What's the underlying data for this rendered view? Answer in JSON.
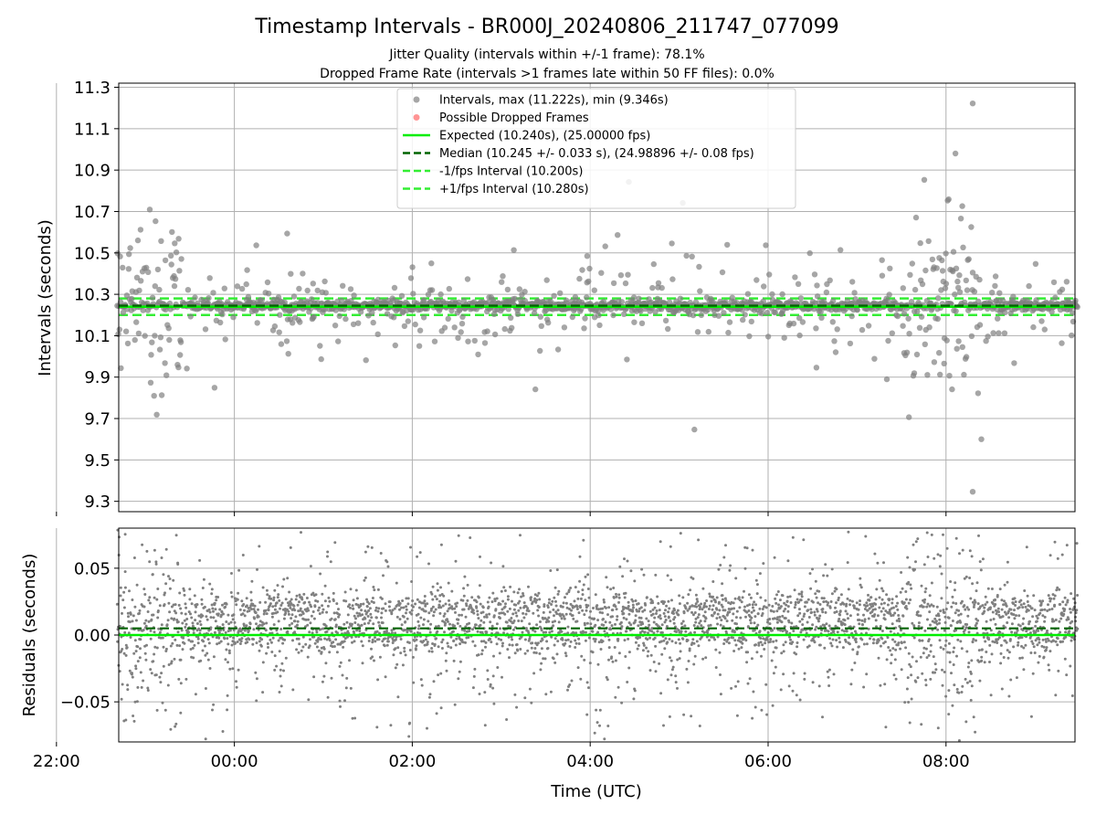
{
  "title": "Timestamp Intervals - BR000J_20240806_211747_077099",
  "subtitle_1": "Jitter Quality (intervals within +/-1 frame): 78.1%",
  "subtitle_2": "Dropped Frame Rate (intervals >1 frames late within 50 FF files): 0.0%",
  "colors": {
    "points": "#808080",
    "dropped": "#ff6666",
    "expected": "#00ee00",
    "median": "#006400",
    "bounds": "#33ee33",
    "grid": "#b0b0b0"
  },
  "chart_data": [
    {
      "type": "scatter",
      "panel": "intervals",
      "ylabel": "Intervals (seconds)",
      "x_unit": "hours since 00:00 UTC",
      "xlim": [
        -1.3,
        9.45
      ],
      "ylim": [
        9.25,
        11.32
      ],
      "yticks": [
        9.3,
        9.5,
        9.7,
        9.9,
        10.1,
        10.3,
        10.5,
        10.7,
        10.9,
        11.1,
        11.3
      ],
      "ytick_labels": [
        "9.3",
        "9.5",
        "9.7",
        "9.9",
        "10.1",
        "10.3",
        "10.5",
        "10.7",
        "10.9",
        "11.1",
        "11.3"
      ],
      "grid": true,
      "legend_position": "top-center",
      "legend": [
        {
          "key": "intervals",
          "label": "Intervals, max (11.222s), min (9.346s)",
          "kind": "marker",
          "color": "#808080"
        },
        {
          "key": "dropped",
          "label": "Possible Dropped Frames",
          "kind": "marker",
          "color": "#ff6666"
        },
        {
          "key": "expected",
          "label": "Expected (10.240s), (25.00000 fps)",
          "kind": "solid",
          "color": "#00ee00"
        },
        {
          "key": "median",
          "label": "Median (10.245 +/- 0.033 s), (24.98896 +/- 0.08 fps)",
          "kind": "dashed",
          "color": "#006400"
        },
        {
          "key": "lower",
          "label": "-1/fps Interval (10.200s)",
          "kind": "dashed",
          "color": "#33ee33"
        },
        {
          "key": "upper",
          "label": "+1/fps Interval (10.280s)",
          "kind": "dashed",
          "color": "#33ee33"
        }
      ],
      "reference_lines": {
        "expected": 10.24,
        "median": 10.245,
        "lower": 10.2,
        "upper": 10.28
      },
      "summary": {
        "max": 11.222,
        "min": 9.346,
        "median": 10.245
      }
    },
    {
      "type": "scatter",
      "panel": "residuals",
      "ylabel": "Residuals (seconds)",
      "xlabel": "Time (UTC)",
      "xlim": [
        -1.3,
        9.45
      ],
      "ylim": [
        -0.08,
        0.08
      ],
      "yticks": [
        -0.05,
        0.0,
        0.05
      ],
      "ytick_labels": [
        "−0.05",
        "0.00",
        "0.05"
      ],
      "xticks": [
        -2,
        0,
        2,
        4,
        6,
        8
      ],
      "xtick_hours": [
        22,
        0,
        2,
        4,
        6,
        8
      ],
      "xtick_labels": [
        "22:00",
        "00:00",
        "02:00",
        "04:00",
        "06:00",
        "08:00"
      ],
      "grid": true,
      "reference_lines": {
        "zero": 0.0,
        "median_offset": 0.005
      }
    }
  ]
}
